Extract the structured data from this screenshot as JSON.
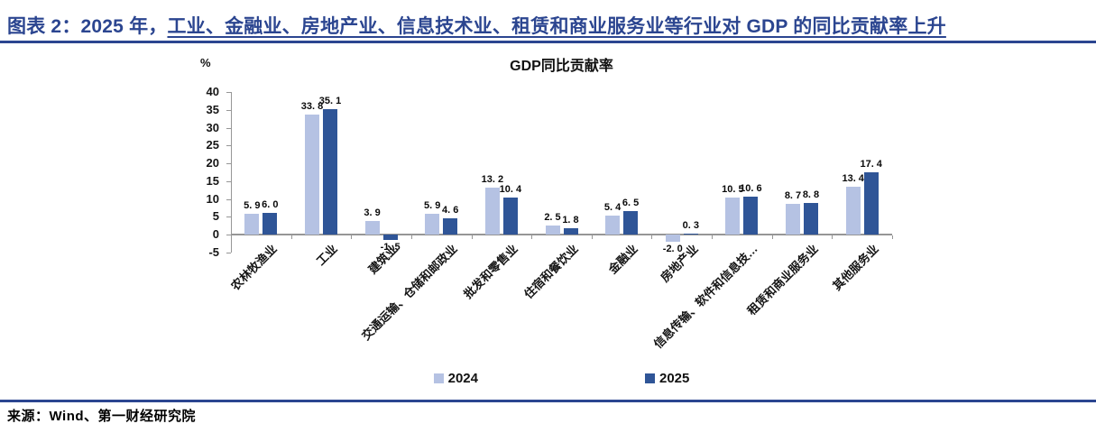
{
  "header": {
    "title_prefix": "图表 2：2025 年，",
    "title_underlined": "工业、金融业、房地产业、信息技术业、租赁和商业服务业等行业对 GDP 的同比贡献率上升"
  },
  "chart": {
    "title": "GDP同比贡献率",
    "unit_label": "%"
  },
  "chart_data": {
    "type": "bar",
    "title": "GDP同比贡献率",
    "unit": "%",
    "categories": [
      "农林牧渔业",
      "工业",
      "建筑业",
      "交通运输、仓储和邮政业",
      "批发和零售业",
      "住宿和餐饮业",
      "金融业",
      "房地产业",
      "信息传输、软件和信息技…",
      "租赁和商业服务业",
      "其他服务业"
    ],
    "series": [
      {
        "name": "2024",
        "color": "#B5C2E3",
        "values": [
          5.9,
          33.8,
          3.9,
          5.9,
          13.2,
          2.5,
          5.4,
          -2.0,
          10.5,
          8.7,
          13.4
        ]
      },
      {
        "name": "2025",
        "color": "#2F5597",
        "values": [
          6.0,
          35.1,
          -1.5,
          4.6,
          10.4,
          1.8,
          6.5,
          0.3,
          10.6,
          8.8,
          17.4
        ]
      }
    ],
    "ylim": [
      -5,
      40
    ],
    "yticks": [
      40,
      35,
      30,
      25,
      20,
      15,
      10,
      5,
      0,
      -5
    ],
    "grid": false,
    "legend_position": "bottom",
    "axis_color": "#969696"
  },
  "legend": {
    "items": [
      {
        "label": "2024",
        "color": "#B5C2E3"
      },
      {
        "label": "2025",
        "color": "#2F5597"
      }
    ]
  },
  "footer": {
    "source": "来源：Wind、第一财经研究院"
  }
}
